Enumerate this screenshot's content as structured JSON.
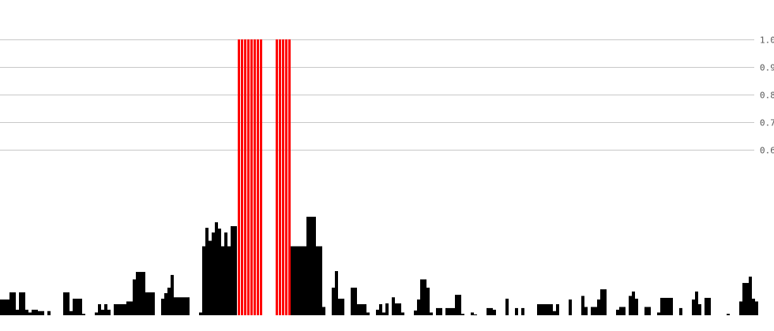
{
  "chart_data": {
    "type": "bar",
    "title": "",
    "xlabel": "",
    "ylabel": "",
    "ylim": [
      0,
      1.0
    ],
    "grid": true,
    "y_ticks": [
      "1.0",
      "0.9",
      "0.8",
      "0.7",
      "0.6"
    ],
    "y_tick_values": [
      1.0,
      0.9,
      0.8,
      0.7,
      0.6
    ],
    "y_axis_side": "right",
    "bar_color": "#000000",
    "highlight_color": "#ff0000",
    "gridline_color": "#c8c8c8",
    "highlighted_indices": [
      75,
      76,
      77,
      78,
      79,
      80,
      81,
      82,
      87,
      88,
      89,
      90,
      91
    ],
    "values": [
      0.057,
      0.057,
      0.057,
      0.083,
      0.083,
      0.02,
      0.083,
      0.083,
      0.02,
      0.01,
      0.02,
      0.02,
      0.015,
      0.015,
      0,
      0.015,
      0,
      0,
      0,
      0,
      0.083,
      0.083,
      0.015,
      0.06,
      0.06,
      0.06,
      0.005,
      0,
      0,
      0,
      0.01,
      0.04,
      0.02,
      0.04,
      0.02,
      0,
      0.04,
      0.04,
      0.04,
      0.04,
      0.05,
      0.05,
      0.13,
      0.157,
      0.157,
      0.157,
      0.083,
      0.083,
      0.083,
      0,
      0,
      0.06,
      0.08,
      0.1,
      0.146,
      0.065,
      0.065,
      0.065,
      0.065,
      0.065,
      0,
      0,
      0,
      0.01,
      0.25,
      0.317,
      0.27,
      0.3,
      0.337,
      0.314,
      0.25,
      0.3,
      0.25,
      0.323,
      0.323,
      1,
      1,
      1,
      1,
      1,
      1,
      1,
      1,
      0,
      0,
      0,
      0,
      1,
      1,
      1,
      1,
      1,
      0.25,
      0.25,
      0.25,
      0.25,
      0.25,
      0.357,
      0.357,
      0.357,
      0.25,
      0.25,
      0.03,
      0,
      0,
      0.1,
      0.16,
      0.06,
      0.06,
      0,
      0,
      0.1,
      0.1,
      0.04,
      0.04,
      0.04,
      0.01,
      0,
      0,
      0.02,
      0.04,
      0.01,
      0.043,
      0,
      0.065,
      0.043,
      0.043,
      0.01,
      0,
      0,
      0,
      0.017,
      0.057,
      0.13,
      0.13,
      0.1,
      0.01,
      0,
      0.026,
      0.026,
      0,
      0.026,
      0.026,
      0.026,
      0.074,
      0.074,
      0.005,
      0,
      0,
      0.01,
      0.003,
      0,
      0,
      0,
      0.026,
      0.026,
      0.02,
      0,
      0,
      0,
      0.06,
      0,
      0,
      0.026,
      0,
      0.026,
      0,
      0,
      0,
      0,
      0.04,
      0.04,
      0.04,
      0.04,
      0.04,
      0.015,
      0.04,
      0,
      0,
      0,
      0.057,
      0,
      0,
      0,
      0.07,
      0.03,
      0,
      0.03,
      0.03,
      0.057,
      0.094,
      0.094,
      0,
      0,
      0,
      0.02,
      0.03,
      0.03,
      0,
      0.07,
      0.086,
      0.06,
      0,
      0,
      0.03,
      0.03,
      0,
      0,
      0.01,
      0.063,
      0.063,
      0.063,
      0.063,
      0,
      0,
      0.026,
      0,
      0,
      0,
      0.057,
      0.086,
      0.04,
      0,
      0.063,
      0.063,
      0,
      0,
      0,
      0,
      0,
      0.005,
      0,
      0,
      0,
      0.05,
      0.117,
      0.117,
      0.14,
      0.06,
      0.05
    ]
  }
}
